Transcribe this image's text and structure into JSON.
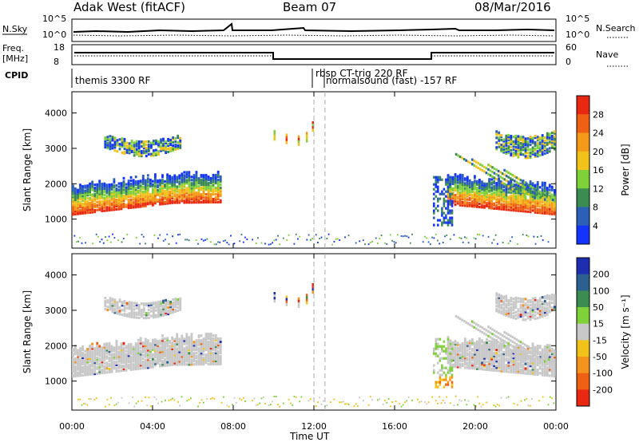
{
  "header": {
    "station": "Adak West (fitACF)",
    "beam": "Beam 07",
    "date": "08/Mar/2016"
  },
  "summary": {
    "nsky_label": "N.Sky",
    "nsearch_label": "N.Search",
    "left_ticks": [
      "10^5",
      "10^0"
    ],
    "right_ticks": [
      "10^5",
      "10^0"
    ],
    "freq_label_1": "Freq.",
    "freq_label_2": "[MHz]",
    "freq_ticks": [
      "18",
      "8"
    ],
    "nave_label": "Nave",
    "nave_ticks": [
      "60",
      "0"
    ],
    "cpid_label": "CPID",
    "cpid_modes": [
      "themis 3300 RF",
      "rbsp CT-trig 220 RF",
      "normalsound (fast) -157 RF"
    ]
  },
  "chart_data": [
    {
      "type": "heatmap",
      "title": "",
      "xlabel": "Time UT",
      "ylabel": "Slant Range [km]",
      "xlim": [
        0,
        24
      ],
      "ylim": [
        180,
        4600
      ],
      "x_ticks": [
        "00:00",
        "04:00",
        "08:00",
        "12:00",
        "16:00",
        "20:00",
        "00:00"
      ],
      "y_ticks": [
        "1000",
        "2000",
        "3000",
        "4000"
      ],
      "colorbar_label": "Power [dB]",
      "colorbar_ticks": [
        "4",
        "8",
        "12",
        "16",
        "20",
        "24",
        "28"
      ],
      "colorbar_colors": [
        "#1433ff",
        "#2b5fb8",
        "#3c8c52",
        "#7fd13a",
        "#f0c21a",
        "#f59a18",
        "#f06014",
        "#e82810"
      ],
      "echo_regions": [
        {
          "name": "morning-ground-scatter",
          "t_start": 0.0,
          "t_end": 7.5,
          "range_low": 1100,
          "range_high": 2300
        },
        {
          "name": "morning-upper-band",
          "t_start": 1.5,
          "t_end": 5.5,
          "range_low": 2800,
          "range_high": 3400
        },
        {
          "name": "evening-ground-scatter",
          "t_start": 18.5,
          "t_end": 24.0,
          "range_low": 1200,
          "range_high": 2500
        },
        {
          "name": "evening-upper-band",
          "t_start": 21.0,
          "t_end": 24.0,
          "range_low": 2900,
          "range_high": 3500
        },
        {
          "name": "midday-patches",
          "t_start": 10.0,
          "t_end": 12.0,
          "range_low": 2900,
          "range_high": 3800
        }
      ]
    },
    {
      "type": "heatmap",
      "title": "",
      "xlabel": "Time UT",
      "ylabel": "Slant Range [km]",
      "xlim": [
        0,
        24
      ],
      "ylim": [
        180,
        4600
      ],
      "x_ticks": [
        "00:00",
        "04:00",
        "08:00",
        "12:00",
        "16:00",
        "20:00",
        "00:00"
      ],
      "y_ticks": [
        "1000",
        "2000",
        "3000",
        "4000"
      ],
      "colorbar_label": "Velocity [m s⁻¹]",
      "colorbar_ticks": [
        "200",
        "100",
        "50",
        "15",
        "-15",
        "-50",
        "-100",
        "-200"
      ],
      "colorbar_colors": [
        "#1e2eb0",
        "#2c6090",
        "#3c8c52",
        "#7fd13a",
        "#c8c8c8",
        "#f0c21a",
        "#f5941c",
        "#f06014",
        "#e82810"
      ],
      "ground_scatter_color": "#c8c8c8"
    }
  ]
}
